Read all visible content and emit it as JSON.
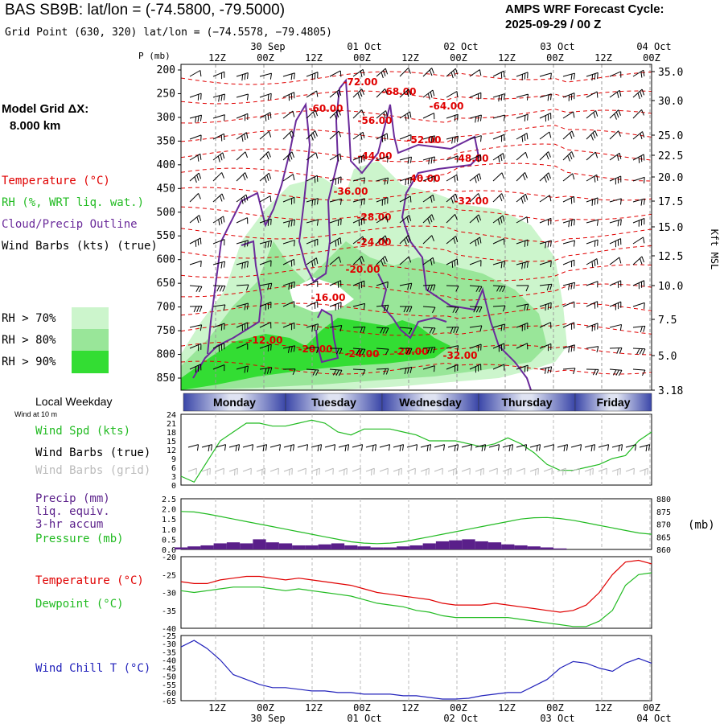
{
  "header": {
    "title": "BAS SB9B:  lat/lon = (-74.5800, -79.5000)",
    "grid_point": "Grid Point (630, 320) lat/lon = (−74.5578, −79.4805)",
    "cycle_line1": "AMPS WRF Forecast Cycle:",
    "cycle_line2": "2025-09-29 / 00  Z"
  },
  "left_panel": {
    "model_grid_line1": "Model Grid ΔX:",
    "model_grid_line2": "8.000 km",
    "legend_temperature": "Temperature (°C)",
    "legend_rh": "RH (%, WRT liq. wat.)",
    "legend_cloud": "Cloud/Precip Outline",
    "legend_wind": "Wind Barbs (kts) (true)",
    "rh70": "RH > 70%",
    "rh80": "RH > 80%",
    "rh90": "RH > 90%"
  },
  "colors": {
    "temperature": "#e00000",
    "rh": "#22bb22",
    "cloud": "#6a2a9a",
    "rh70": "#ccf5cc",
    "rh80": "#99e699",
    "rh90": "#33dd33",
    "grid": "#999999",
    "windchill": "#2222bb",
    "precip": "#5a1f8a"
  },
  "time_axis": {
    "top_hours": [
      "12Z",
      "00Z",
      "12Z",
      "00Z",
      "12Z",
      "00Z",
      "12Z",
      "00Z",
      "12Z",
      "00Z"
    ],
    "top_dates": [
      "30 Sep",
      "01 Oct",
      "02 Oct",
      "03 Oct",
      "04 Oct"
    ],
    "bottom_hours": [
      "12Z",
      "00Z",
      "12Z",
      "00Z",
      "12Z",
      "00Z",
      "12Z",
      "00Z",
      "12Z",
      "00Z"
    ],
    "bottom_dates": [
      "30 Sep",
      "01 Oct",
      "02 Oct",
      "03 Oct",
      "04 Oct"
    ]
  },
  "weekdays": {
    "label": "Local Weekday",
    "days": [
      "Monday",
      "Tuesday",
      "Wednesday",
      "Thursday",
      "Friday"
    ]
  },
  "chart_data": [
    {
      "type": "heatmap",
      "title": "Time-height cross section",
      "ylabel": "P (mb)",
      "y2label": "Kft MSL",
      "pressure_ticks": [
        "200",
        "250",
        "300",
        "350",
        "400",
        "450",
        "500",
        "550",
        "600",
        "650",
        "700",
        "750",
        "800",
        "850"
      ],
      "height_ticks": [
        "35.0",
        "30.0",
        "25.0",
        "22.5",
        "20.0",
        "17.5",
        "15.0",
        "12.5",
        "10.0",
        "7.5",
        "5.0",
        "3.18"
      ],
      "temperature_labels": [
        "-72.00",
        "-68.00",
        "-60.00",
        "-64.00",
        "-56.00",
        "-52.00",
        "-48.00",
        "-44.00",
        "-40.00",
        "-36.00",
        "-32.00",
        "-28.00",
        "-24.00",
        "-20.00",
        "-16.00",
        "-12.00",
        "-20.00",
        "-24.00",
        "-28.00",
        "-32.00"
      ]
    },
    {
      "type": "line",
      "title": "Wind Spd (kts)",
      "label_wind_at": "Wind at 10 m",
      "label_spd": "Wind Spd (kts)",
      "label_barbs_true": "Wind Barbs (true)",
      "label_barbs_grid": "Wind Barbs (grid)",
      "y_ticks": [
        "24",
        "21",
        "18",
        "15",
        "12",
        "9",
        "6",
        "3",
        "0"
      ],
      "ylim": [
        0,
        24
      ],
      "values": [
        3,
        1,
        8,
        15,
        18,
        21,
        21,
        20,
        20,
        21,
        22,
        21,
        18,
        17,
        19,
        19,
        19,
        18,
        17,
        15,
        15,
        15,
        14,
        13,
        14,
        16,
        14,
        11,
        7,
        5,
        5,
        6,
        7,
        9,
        10,
        15,
        18
      ]
    },
    {
      "type": "bar",
      "title": "Precip and Pressure",
      "label_precip1": "Precip (mm)",
      "label_precip2": "liq. equiv.",
      "label_precip3": "3-hr accum",
      "label_pressure": "Pressure (mb)",
      "y_ticks": [
        "2.5",
        "2.0",
        "1.5",
        "1.0",
        "0.5",
        "0.0"
      ],
      "y2_ticks": [
        "880",
        "875",
        "870",
        "865",
        "860"
      ],
      "y2_unit": "(mb)",
      "precip_values": [
        0.1,
        0.15,
        0.2,
        0.3,
        0.35,
        0.3,
        0.5,
        0.35,
        0.3,
        0.2,
        0.2,
        0.25,
        0.3,
        0.2,
        0.15,
        0.1,
        0.1,
        0.15,
        0.2,
        0.3,
        0.4,
        0.45,
        0.5,
        0.4,
        0.35,
        0.25,
        0.2,
        0.15,
        0.1,
        0.05,
        0,
        0,
        0,
        0,
        0,
        0,
        0
      ],
      "pressure_values": [
        875,
        874.8,
        874,
        873,
        872,
        871,
        870,
        869,
        868,
        867,
        866,
        865,
        864,
        863,
        862.5,
        862.3,
        862.5,
        863,
        864,
        865,
        866,
        867,
        868,
        869,
        870,
        871,
        872,
        872.5,
        872.6,
        872.2,
        871.5,
        870.5,
        869.5,
        868.5,
        867.5,
        866.5,
        866
      ]
    },
    {
      "type": "line",
      "title": "Temperature / Dewpoint",
      "label_temp": "Temperature (°C)",
      "label_dew": "Dewpoint (°C)",
      "y_ticks": [
        "-20",
        "-25",
        "-30",
        "-35",
        "-40"
      ],
      "ylim": [
        -40,
        -20
      ],
      "temperature": [
        -27,
        -27.5,
        -27.5,
        -26.5,
        -26,
        -25.5,
        -25.5,
        -26,
        -26.5,
        -26,
        -26.5,
        -27,
        -27.5,
        -28,
        -29,
        -30,
        -30.5,
        -31,
        -31.5,
        -32,
        -33,
        -33.5,
        -33.5,
        -33.5,
        -33,
        -33.5,
        -34,
        -34.5,
        -35,
        -35.5,
        -35,
        -33.5,
        -30,
        -25,
        -21.5,
        -21,
        -22
      ],
      "dewpoint": [
        -29.5,
        -30,
        -29.5,
        -29,
        -28.5,
        -28.5,
        -28.5,
        -29,
        -29.5,
        -29,
        -29.5,
        -30,
        -30.5,
        -31,
        -32,
        -33,
        -33.5,
        -34,
        -35,
        -35.5,
        -36.5,
        -37,
        -37,
        -37,
        -37,
        -37,
        -37.5,
        -38,
        -38.5,
        -39,
        -39.5,
        -39.5,
        -38,
        -35,
        -28,
        -25,
        -24.5
      ]
    },
    {
      "type": "line",
      "title": "Wind Chill T (°C)",
      "label": "Wind Chill T (°C)",
      "y_ticks": [
        "-25",
        "-30",
        "-35",
        "-40",
        "-45",
        "-50",
        "-55",
        "-60",
        "-65"
      ],
      "ylim": [
        -65,
        -25
      ],
      "values": [
        -32,
        -28,
        -33,
        -40,
        -49,
        -52,
        -55,
        -57,
        -57,
        -58,
        -59,
        -59,
        -60,
        -60,
        -61,
        -61,
        -61,
        -62,
        -62,
        -63,
        -64,
        -64,
        -63.5,
        -62,
        -61,
        -60,
        -60,
        -56,
        -52,
        -45,
        -41,
        -42,
        -45,
        -47,
        -42,
        -39,
        -42
      ]
    }
  ]
}
